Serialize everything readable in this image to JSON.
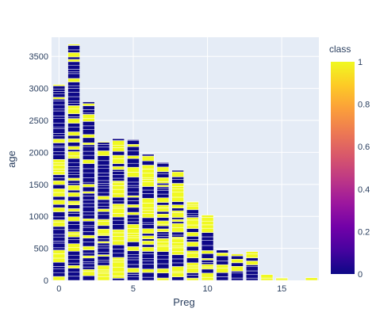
{
  "chart_data": {
    "type": "bar",
    "subtype": "stacked",
    "xlabel": "Preg",
    "ylabel": "age",
    "xlim": [
      -0.5,
      17.5
    ],
    "ylim": [
      0,
      3800
    ],
    "x_ticks": [
      0,
      5,
      10,
      15
    ],
    "y_ticks": [
      0,
      500,
      1000,
      1500,
      2000,
      2500,
      3000,
      3500
    ],
    "grid": true,
    "plot_background": "#E5ECF6",
    "bar_edge_color": "#ffffff",
    "categories": [
      0,
      1,
      2,
      3,
      4,
      5,
      6,
      7,
      8,
      9,
      10,
      11,
      12,
      13,
      14,
      15,
      17
    ],
    "totals": [
      3060,
      3690,
      2790,
      2170,
      2220,
      2200,
      1970,
      1840,
      1720,
      1230,
      1020,
      480,
      420,
      450,
      90,
      40,
      40
    ],
    "class_fraction_1": [
      0.34,
      0.38,
      0.25,
      0.32,
      0.45,
      0.36,
      0.46,
      0.52,
      0.56,
      0.65,
      0.52,
      0.55,
      0.45,
      0.45,
      1.0,
      1.0,
      1.0
    ],
    "colorbar": {
      "title": "class",
      "min": 0,
      "max": 1,
      "ticks": [
        0,
        0.2,
        0.4,
        0.6,
        0.8,
        1
      ],
      "tick_labels": [
        "0",
        "0.2",
        "0.4",
        "0.6",
        "0.8",
        "1"
      ],
      "colorscale": [
        "#0d0887",
        "#46039f",
        "#7201a8",
        "#9c179e",
        "#bd3786",
        "#d8576b",
        "#ed7953",
        "#fb9f3a",
        "#fdca26",
        "#f0f921"
      ]
    }
  }
}
